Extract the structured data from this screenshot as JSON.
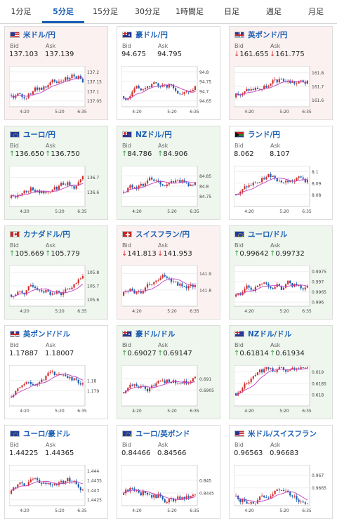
{
  "tabs": [
    {
      "label": "1分足",
      "active": false
    },
    {
      "label": "5分足",
      "active": true
    },
    {
      "label": "15分足",
      "active": false
    },
    {
      "label": "30分足",
      "active": false
    },
    {
      "label": "1時間足",
      "active": false
    },
    {
      "label": "日足",
      "active": false
    },
    {
      "label": "週足",
      "active": false
    },
    {
      "label": "月足",
      "active": false
    }
  ],
  "colors": {
    "up": "#d32f2f",
    "down": "#1a5fb4",
    "ma": "#c040c0",
    "text_up": "#2e9e3a",
    "text_down": "#d32f2f",
    "link": "#1a5fb4"
  },
  "labels": {
    "bid": "Bid",
    "ask": "Ask"
  },
  "x_ticks": [
    "4:20",
    "5:20",
    "6:35"
  ],
  "cards": [
    {
      "pair": "米ドル/円",
      "flag": "us-flag",
      "bg": "pink",
      "bid": "137.103",
      "ask": "137.139",
      "dir": "none",
      "yticks": [
        "137.2",
        "137.15",
        "137.1",
        "137.05"
      ],
      "ymin": 137.02,
      "ymax": 137.23,
      "seed": 1,
      "trend": 0.6
    },
    {
      "pair": "豪ドル/円",
      "flag": "au-flag",
      "bg": "white",
      "bid": "94.675",
      "ask": "94.795",
      "dir": "none",
      "yticks": [
        "94.8",
        "94.75",
        "94.7",
        "94.65"
      ],
      "ymin": 94.62,
      "ymax": 94.83,
      "seed": 2,
      "trend": 0.7
    },
    {
      "pair": "英ポンド/円",
      "flag": "gb-flag",
      "bg": "pink",
      "bid": "161.655",
      "ask": "161.775",
      "dir": "down",
      "yticks": [
        "161.8",
        "161.7",
        "161.6"
      ],
      "ymin": 161.55,
      "ymax": 161.85,
      "seed": 3,
      "trend": 0.5
    },
    {
      "pair": "ユーロ/円",
      "flag": "eu-flag",
      "bg": "green",
      "bid": "136.650",
      "ask": "136.750",
      "dir": "up",
      "yticks": [
        "136.7",
        "136.6"
      ],
      "ymin": 136.5,
      "ymax": 136.78,
      "seed": 4,
      "trend": 0.8
    },
    {
      "pair": "NZドル/円",
      "flag": "nz-flag",
      "bg": "green",
      "bid": "84.786",
      "ask": "84.906",
      "dir": "up",
      "yticks": [
        "84.85",
        "84.8",
        "84.75"
      ],
      "ymin": 84.7,
      "ymax": 84.9,
      "seed": 5,
      "trend": 0.7
    },
    {
      "pair": "ランド/円",
      "flag": "za-flag",
      "bg": "white",
      "bid": "8.062",
      "ask": "8.107",
      "dir": "none",
      "yticks": [
        "8.1",
        "8.09",
        "8.08"
      ],
      "ymin": 8.07,
      "ymax": 8.105,
      "seed": 6,
      "trend": 0.6
    },
    {
      "pair": "カナダドル/円",
      "flag": "ca-flag",
      "bg": "green",
      "bid": "105.669",
      "ask": "105.779",
      "dir": "up",
      "yticks": [
        "105.8",
        "105.7",
        "105.6"
      ],
      "ymin": 105.55,
      "ymax": 105.85,
      "seed": 7,
      "trend": 0.7
    },
    {
      "pair": "スイスフラン/円",
      "flag": "ch-flag",
      "bg": "pink",
      "bid": "141.813",
      "ask": "141.953",
      "dir": "down",
      "yticks": [
        "141.9",
        "141.8"
      ],
      "ymin": 141.7,
      "ymax": 141.95,
      "seed": 8,
      "trend": 0.5
    },
    {
      "pair": "ユーロ/ドル",
      "flag": "eu-flag",
      "bg": "green",
      "bid": "0.99642",
      "ask": "0.99732",
      "dir": "up",
      "yticks": [
        "0.9975",
        "0.997",
        "0.9965",
        "0.996"
      ],
      "ymin": 0.9958,
      "ymax": 0.9978,
      "seed": 9,
      "trend": 0.5
    },
    {
      "pair": "英ポンド/ドル",
      "flag": "gb-flag",
      "bg": "white",
      "bid": "1.17887",
      "ask": "1.18007",
      "dir": "none",
      "yticks": [
        "1.18",
        "1.179"
      ],
      "ymin": 1.1775,
      "ymax": 1.1815,
      "seed": 10,
      "trend": 0.4
    },
    {
      "pair": "豪ドル/ドル",
      "flag": "au-flag",
      "bg": "green",
      "bid": "0.69027",
      "ask": "0.69147",
      "dir": "up",
      "yticks": [
        "0.691",
        "0.6905"
      ],
      "ymin": 0.6898,
      "ymax": 0.6916,
      "seed": 11,
      "trend": 0.6
    },
    {
      "pair": "NZドル/ドル",
      "flag": "nz-flag",
      "bg": "green",
      "bid": "0.61814",
      "ask": "0.61934",
      "dir": "up",
      "yticks": [
        "0.619",
        "0.6185",
        "0.618"
      ],
      "ymin": 0.6175,
      "ymax": 0.6193,
      "seed": 12,
      "trend": 0.6
    },
    {
      "pair": "ユーロ/豪ドル",
      "flag": "eu-flag",
      "bg": "white",
      "bid": "1.44225",
      "ask": "1.44365",
      "dir": "none",
      "yticks": [
        "1.444",
        "1.4435",
        "1.443",
        "1.4425"
      ],
      "ymin": 1.4422,
      "ymax": 1.4443,
      "seed": 13,
      "trend": 0.5
    },
    {
      "pair": "ユーロ/英ポンド",
      "flag": "eu-flag",
      "bg": "white",
      "bid": "0.84466",
      "ask": "0.84566",
      "dir": "none",
      "yticks": [
        "0.845",
        "0.8445"
      ],
      "ymin": 0.844,
      "ymax": 0.8456,
      "seed": 14,
      "trend": 0.4
    },
    {
      "pair": "米ドル/スイスフラン",
      "flag": "us-flag",
      "bg": "white",
      "bid": "0.96563",
      "ask": "0.96683",
      "dir": "none",
      "yticks": [
        "0.967",
        "0.9665"
      ],
      "ymin": 0.9658,
      "ymax": 0.9674,
      "seed": 15,
      "trend": 0.4
    }
  ]
}
